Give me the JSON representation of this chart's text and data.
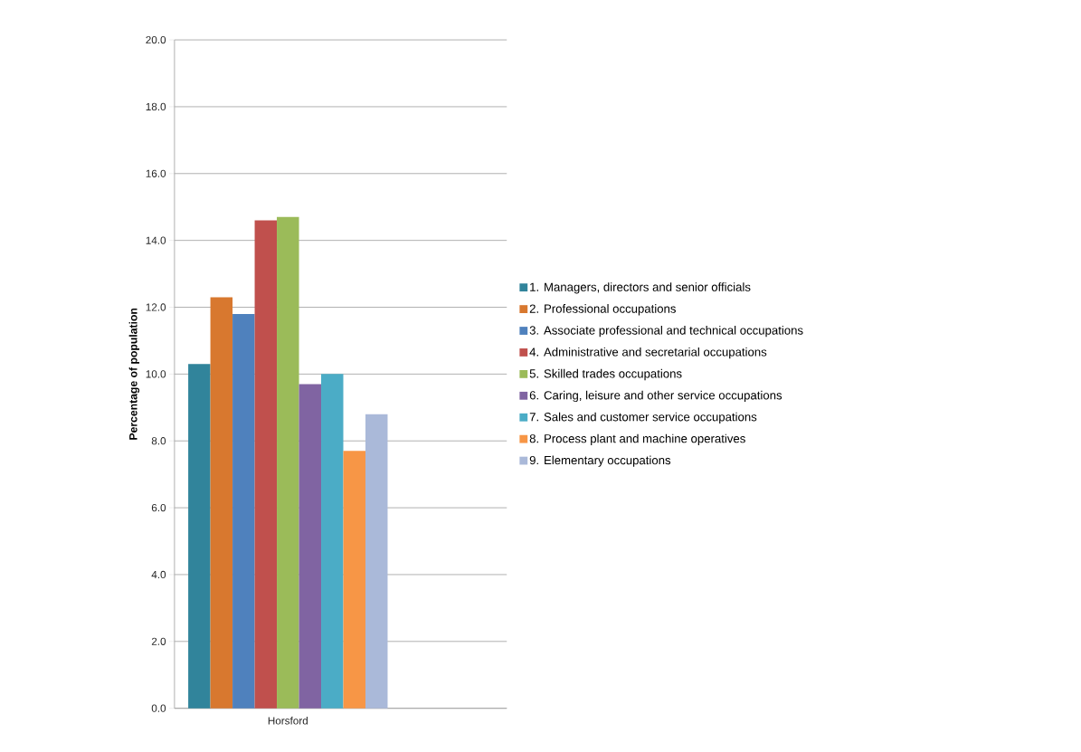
{
  "chart_data": {
    "type": "bar",
    "ylabel": "Percentage of population",
    "categories": [
      "Horsford"
    ],
    "series": [
      {
        "name": "1. Managers, directors and senior officials",
        "color": "#31849b",
        "values": [
          10.3
        ]
      },
      {
        "name": "2. Professional occupations",
        "color": "#d8782f",
        "values": [
          12.3
        ]
      },
      {
        "name": "3. Associate professional and technical occupations",
        "color": "#4f81bd",
        "values": [
          11.8
        ]
      },
      {
        "name": "4. Administrative and secretarial occupations",
        "color": "#c0504d",
        "values": [
          14.6
        ]
      },
      {
        "name": "5. Skilled trades occupations",
        "color": "#9bbb59",
        "values": [
          14.7
        ]
      },
      {
        "name": "6. Caring, leisure and other service occupations",
        "color": "#8064a2",
        "values": [
          9.7
        ]
      },
      {
        "name": "7. Sales and customer service occupations",
        "color": "#4bacc6",
        "values": [
          10.0
        ]
      },
      {
        "name": "8. Process plant and machine operatives",
        "color": "#f79646",
        "values": [
          7.7
        ]
      },
      {
        "name": "9. Elementary occupations",
        "color": "#aab9d9",
        "values": [
          8.8
        ]
      }
    ],
    "ylim": [
      0,
      20
    ],
    "yticks": [
      {
        "value": 0,
        "label": "0.0"
      },
      {
        "value": 2,
        "label": "2.0"
      },
      {
        "value": 4,
        "label": "4.0"
      },
      {
        "value": 6,
        "label": "6.0"
      },
      {
        "value": 8,
        "label": "8.0"
      },
      {
        "value": 10,
        "label": "10.0"
      },
      {
        "value": 12,
        "label": "12.0"
      },
      {
        "value": 14,
        "label": "14.0"
      },
      {
        "value": 16,
        "label": "16.0"
      },
      {
        "value": 18,
        "label": "18.0"
      },
      {
        "value": 20,
        "label": "20.0"
      }
    ],
    "grid": "y",
    "legend": "right"
  }
}
